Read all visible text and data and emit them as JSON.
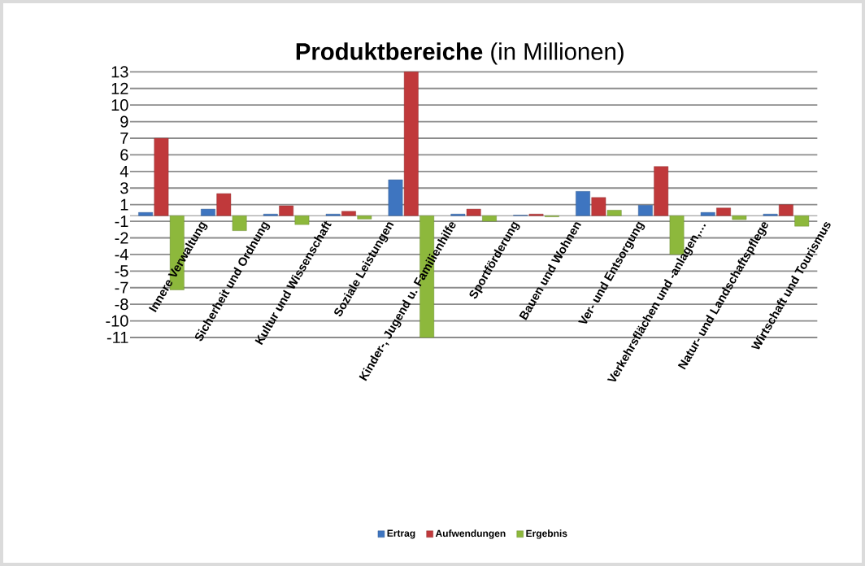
{
  "chart_data": {
    "type": "bar",
    "title": "**Produktbereiche** (in Millionen)",
    "categories": [
      "Innere Verwaltung",
      "Sicherheit und Ordnung",
      "Kultur und Wissenschaft",
      "Soziale Leistungen",
      "Kinder-, Jugend u. Familienhilfe",
      "Sportförderung",
      "Bauen und Wohnen",
      "Ver- und Entsorgung",
      "Verkehrsflächen und -anlagen,…",
      "Natur- und Landschaftspflege",
      "Wirtschaft und Tourismus"
    ],
    "series": [
      {
        "name": "Ertrag",
        "color": "#3e75c0",
        "values": [
          0.3,
          0.6,
          0.15,
          0.15,
          3.25,
          0.15,
          0.05,
          2.2,
          0.95,
          0.3,
          0.15
        ]
      },
      {
        "name": "Aufwendungen",
        "color": "#c0393b",
        "values": [
          7.0,
          2.0,
          0.9,
          0.4,
          13,
          0.6,
          0.15,
          1.65,
          4.45,
          0.7,
          1.0
        ]
      },
      {
        "name": "Ergebnis",
        "color": "#8db83c",
        "values": [
          -6.7,
          -1.35,
          -0.8,
          -0.3,
          -11,
          -0.5,
          -0.1,
          0.5,
          -3.5,
          -0.35,
          -0.95
        ]
      }
    ],
    "ylim": [
      -11,
      13
    ],
    "yticks": [
      {
        "value": -11,
        "label": "-11"
      },
      {
        "value": -9.5,
        "label": "-10"
      },
      {
        "value": -8,
        "label": "-8"
      },
      {
        "value": -6.5,
        "label": "-7"
      },
      {
        "value": -5,
        "label": "-5"
      },
      {
        "value": -3.5,
        "label": "-4"
      },
      {
        "value": -2,
        "label": "-2"
      },
      {
        "value": -0.5,
        "label": "-1"
      },
      {
        "value": 1,
        "label": "1"
      },
      {
        "value": 2.5,
        "label": "3"
      },
      {
        "value": 4,
        "label": "4"
      },
      {
        "value": 5.5,
        "label": "6"
      },
      {
        "value": 7,
        "label": "7"
      },
      {
        "value": 8.5,
        "label": "9"
      },
      {
        "value": 10,
        "label": "10"
      },
      {
        "value": 11.5,
        "label": "12"
      },
      {
        "value": 13,
        "label": "13"
      }
    ],
    "grid": "y",
    "legend": "bottom"
  }
}
